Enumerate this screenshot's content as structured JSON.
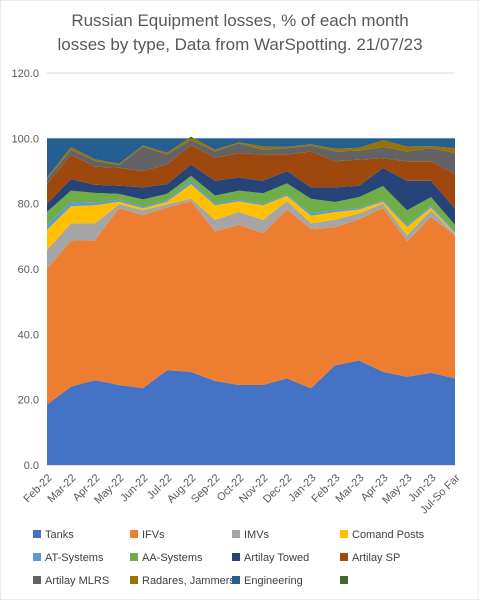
{
  "chart_data": {
    "type": "area",
    "stacked": true,
    "title_lines": [
      "Russian Equipment losses, % of each month",
      "losses by type, Data from WarSpotting. 21/07/23"
    ],
    "xlabel": "",
    "ylabel": "",
    "ylim": [
      0,
      120
    ],
    "y_ticks": [
      "0.0",
      "20.0",
      "40.0",
      "60.0",
      "80.0",
      "100.0",
      "120.0"
    ],
    "grid": "horizontal",
    "legend_position": "bottom",
    "categories": [
      "Feb-22",
      "Mar-22",
      "Apr-22",
      "May-22",
      "Jun-22",
      "Jul-22",
      "Aug-22",
      "Sep-22",
      "Oct-22",
      "Nov-22",
      "Dec-22",
      "Jan-23",
      "Feb-23",
      "Mar-23",
      "Apr-23",
      "May-23",
      "Jun-23",
      "Jul-So Far"
    ],
    "series": [
      {
        "name": "Tanks",
        "color": "#4472c4",
        "values": [
          18.5,
          24,
          26,
          24.5,
          23.5,
          29,
          28.5,
          25.7,
          24.5,
          24.5,
          26.5,
          23.5,
          30.5,
          32,
          28.5,
          27,
          28.2,
          26.5
        ]
      },
      {
        "name": "IFVs",
        "color": "#ed7d31",
        "values": [
          41.5,
          44.7,
          42.8,
          54.1,
          53,
          49.8,
          52.3,
          45.8,
          49,
          46.5,
          51.7,
          48.7,
          42.3,
          43.2,
          50.2,
          41.5,
          47.8,
          43.6
        ]
      },
      {
        "name": "IMVs",
        "color": "#a5a5a5",
        "values": [
          5.8,
          5.3,
          5.2,
          1.2,
          1.5,
          1,
          0.8,
          3.5,
          4,
          4,
          2.6,
          1.8,
          2.3,
          1.8,
          1.3,
          1.8,
          2,
          0.5
        ]
      },
      {
        "name": "Comand Posts",
        "color": "#ffc000",
        "values": [
          6.2,
          5.2,
          5.5,
          0.8,
          0.6,
          0.8,
          4.4,
          4.5,
          3.2,
          4.5,
          1.6,
          2.3,
          2.3,
          1.2,
          0.6,
          2.6,
          0.8,
          0.4
        ]
      },
      {
        "name": "AT-Systems",
        "color": "#5b9bd5",
        "values": [
          1.5,
          1.2,
          0.8,
          0.6,
          0.5,
          0.4,
          1,
          0.5,
          0.5,
          0.5,
          0.5,
          0.8,
          0.6,
          0.5,
          0.4,
          0.6,
          0.5,
          0.5
        ]
      },
      {
        "name": "AA-Systems",
        "color": "#70ad47",
        "values": [
          4,
          3.6,
          3,
          1.8,
          2.2,
          2,
          1.5,
          2.5,
          2.8,
          3.2,
          3.3,
          4.4,
          2.5,
          3.3,
          4.4,
          4.5,
          2.7,
          2
        ]
      },
      {
        "name": "Artilay Towed",
        "color": "#264478",
        "values": [
          2.5,
          3.5,
          2.5,
          2.5,
          3.7,
          3,
          3.5,
          4.5,
          4,
          3.8,
          3.8,
          3.5,
          4.5,
          3.5,
          5.5,
          9,
          5,
          5
        ]
      },
      {
        "name": "Artilay SP",
        "color": "#9e480e",
        "values": [
          6,
          7.5,
          5.5,
          5.5,
          5,
          6,
          6,
          7,
          7.5,
          8,
          5,
          11,
          8,
          8,
          3,
          6,
          6,
          10.5
        ]
      },
      {
        "name": "Artilay MLRS",
        "color": "#636363",
        "values": [
          1.5,
          1.5,
          1.8,
          0.8,
          7.5,
          3,
          1.5,
          2,
          3,
          1.5,
          2,
          1.8,
          3,
          2.7,
          3.5,
          3,
          4,
          6.5
        ]
      },
      {
        "name": "Radares, Jammers",
        "color": "#997300",
        "values": [
          0.5,
          0.8,
          0.5,
          0.4,
          0.3,
          0.6,
          1,
          0.5,
          0.3,
          1,
          0.4,
          0.4,
          0.8,
          0.9,
          2,
          1.5,
          0.6,
          1.5
        ]
      },
      {
        "name": "Engineering",
        "color": "#255e91",
        "values": [
          12,
          2.7,
          6.4,
          7.8,
          2.2,
          4.4,
          -0.5,
          3.5,
          1.2,
          2.5,
          2.6,
          1.8,
          3.2,
          2.9,
          0.6,
          2.5,
          2.4,
          3
        ]
      },
      {
        "name": "",
        "color": "#43682b",
        "values": [
          0,
          0,
          0,
          0,
          0,
          0,
          0,
          0,
          0,
          0,
          0,
          0,
          0,
          0,
          0,
          0,
          0,
          0
        ]
      }
    ]
  }
}
